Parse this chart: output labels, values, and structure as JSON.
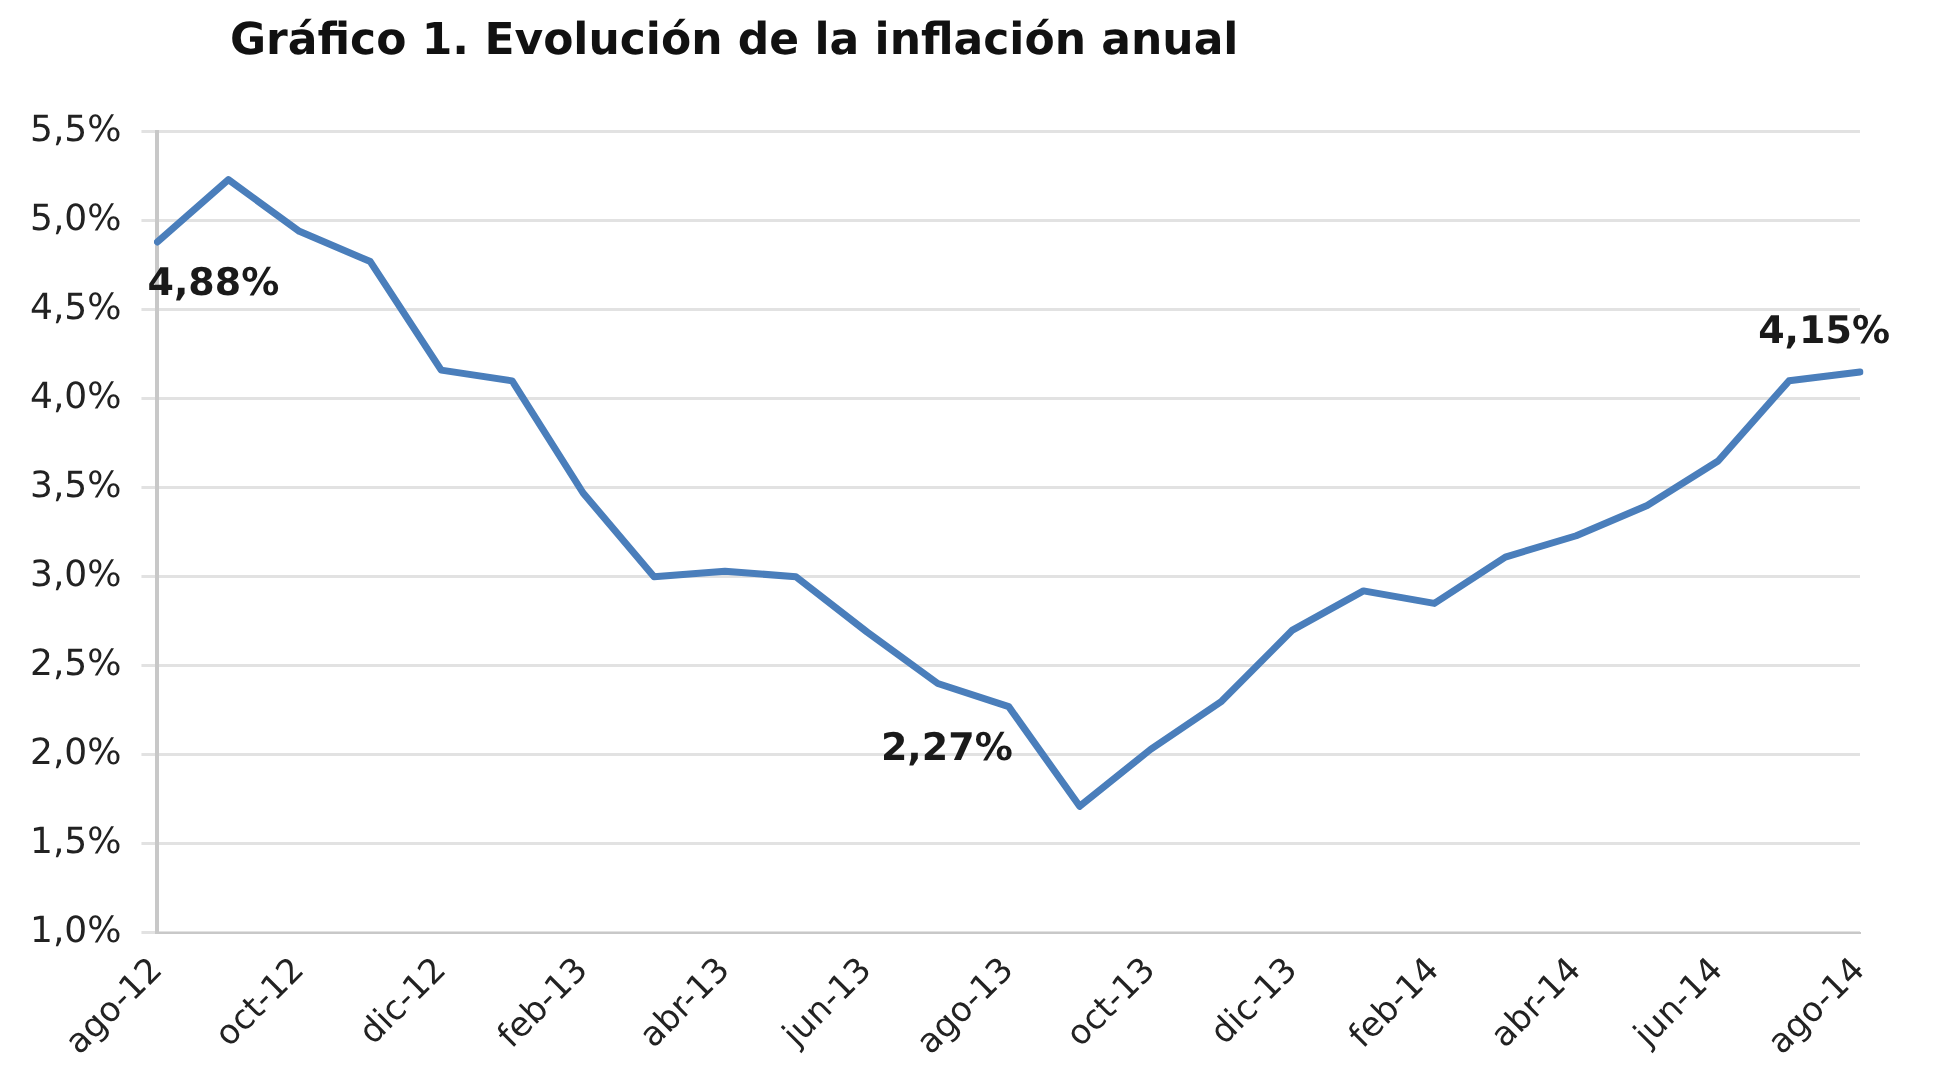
{
  "chart_data": {
    "type": "line",
    "title": "Gráfico 1. Evolución de la inflación anual",
    "categories": [
      "ago-12",
      null,
      "oct-12",
      null,
      "dic-12",
      null,
      "feb-13",
      null,
      "abr-13",
      null,
      "jun-13",
      null,
      "ago-13",
      null,
      "oct-13",
      null,
      "dic-13",
      null,
      "feb-14",
      null,
      "abr-14",
      null,
      "jun-14",
      null,
      "ago-14"
    ],
    "series": [
      {
        "color": "#4a7ebb",
        "values": [
          4.88,
          5.23,
          4.94,
          4.77,
          4.16,
          4.1,
          3.47,
          3.0,
          3.03,
          3.0,
          2.69,
          2.4,
          2.27,
          1.71,
          2.03,
          2.3,
          2.7,
          2.92,
          2.85,
          3.11,
          3.23,
          3.4,
          3.65,
          4.1,
          4.15
        ],
        "value_labels": [
          "4,88%",
          null,
          null,
          null,
          null,
          null,
          null,
          null,
          null,
          null,
          null,
          null,
          "2,27%",
          null,
          null,
          null,
          null,
          null,
          null,
          null,
          null,
          null,
          null,
          null,
          "4,15%"
        ]
      }
    ],
    "ylim": [
      1.0,
      5.5
    ],
    "yticks": [
      {
        "value": 1.0,
        "label": "1,0%"
      },
      {
        "value": 1.5,
        "label": "1,5%"
      },
      {
        "value": 2.0,
        "label": "2,0%"
      },
      {
        "value": 2.5,
        "label": "2,5%"
      },
      {
        "value": 3.0,
        "label": "3,0%"
      },
      {
        "value": 3.5,
        "label": "3,5%"
      },
      {
        "value": 4.0,
        "label": "4,0%"
      },
      {
        "value": 4.5,
        "label": "4,5%"
      },
      {
        "value": 5.0,
        "label": "5,0%"
      },
      {
        "value": 5.5,
        "label": "5,5%"
      }
    ],
    "grid": "y",
    "legend": false,
    "marker": "none",
    "line_style": "solid"
  }
}
